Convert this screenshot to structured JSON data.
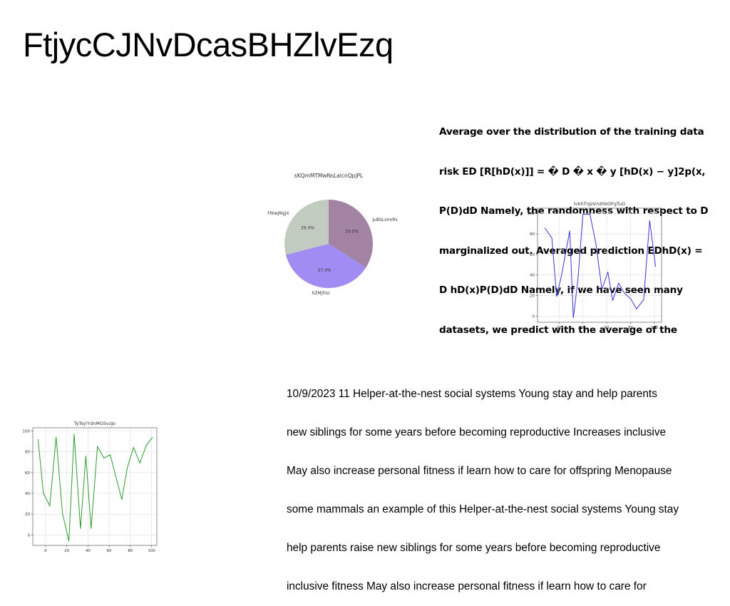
{
  "title": "FtjycCJNvDcasBHZlvEzq",
  "bold_paragraph": [
    "Average over the distribution of the training data",
    "risk ED [R[hD(x)]] = � D � x � y [hD(x) − y]2p(x,",
    "P(D)dD Namely, the randomness with respect to D",
    "marginalized out. Averaged prediction EDhD(x) =",
    "D hD(x)P(D)dD Namely, if we have seen many",
    "datasets, we predict with the average of the"
  ],
  "body_paragraph": [
    "10/9/2023 11 Helper-at-the-nest social systems Young stay and help parents",
    "new siblings for some years before becoming reproductive Increases inclusive",
    "May also increase personal fitness if learn how to care for offspring Menopause",
    "some mammals an example of this Helper-at-the-nest social systems Young stay",
    "help parents raise new siblings for some years before becoming reproductive",
    "inclusive fitness May also increase personal fitness if learn how to care for"
  ],
  "chart_data": [
    {
      "type": "pie",
      "title": "sKQmMTMwNsLalcnQpjPL",
      "slices": [
        {
          "label": "JuBSLximRs",
          "value": 34.0,
          "pct_label": "34.0%",
          "color": "#a283a4"
        },
        {
          "label": "hZMjfnU",
          "value": 37.0,
          "pct_label": "37.0%",
          "color": "#a08cf2"
        },
        {
          "label": "FNiwJNgjX",
          "value": 29.0,
          "pct_label": "29.0%",
          "color": "#c2cbbf"
        }
      ],
      "start_angle_deg": 90,
      "direction": "clockwise"
    },
    {
      "type": "line",
      "title": "lvkhTnJzVnzhbOFgTuG",
      "color": "#3a33d6",
      "x": [
        8,
        14,
        18,
        22,
        29,
        32,
        36,
        40,
        46,
        51,
        56,
        61,
        65,
        70,
        75,
        80,
        85,
        91,
        96,
        101
      ],
      "y": [
        86,
        76,
        19,
        39,
        83,
        -2,
        37,
        99,
        99,
        70,
        26,
        43,
        15,
        32,
        22,
        17,
        7,
        16,
        93,
        48
      ],
      "xticks": [
        20,
        40,
        60,
        80,
        100
      ],
      "yticks": [
        0,
        20,
        40,
        60,
        80,
        100
      ],
      "xlim": [
        2,
        106
      ],
      "ylim": [
        -6,
        105
      ],
      "grid": true
    },
    {
      "type": "line",
      "title": "TyTejrYdnMGSvzJo",
      "color": "#2e9a2e",
      "x": [
        -7,
        -2,
        4,
        10,
        16,
        22,
        27,
        33,
        38,
        43,
        49,
        55,
        61,
        72,
        77,
        83,
        89,
        95,
        101
      ],
      "y": [
        92,
        40,
        28,
        94,
        21,
        -6,
        97,
        6,
        76,
        6,
        85,
        74,
        77,
        34,
        64,
        84,
        69,
        86,
        94
      ],
      "xticks": [
        0,
        20,
        40,
        60,
        80,
        100
      ],
      "yticks": [
        0,
        20,
        40,
        60,
        80,
        100
      ],
      "xlim": [
        -12,
        105
      ],
      "ylim": [
        -10,
        103
      ],
      "grid": true
    }
  ]
}
